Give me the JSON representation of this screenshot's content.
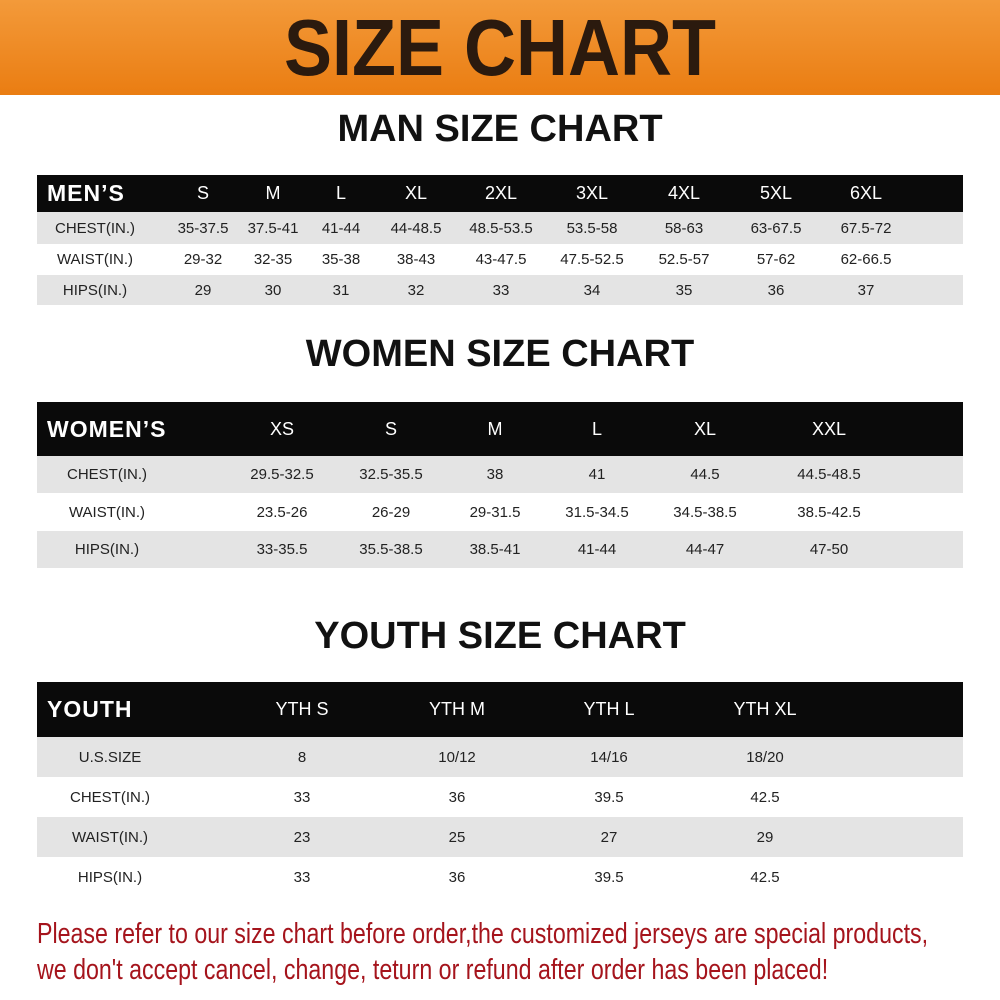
{
  "banner_title": "SIZE CHART",
  "tables": [
    {
      "title": "MAN SIZE CHART",
      "header": [
        "MEN’S",
        "S",
        "M",
        "L",
        "XL",
        "2XL",
        "3XL",
        "4XL",
        "5XL",
        "6XL"
      ],
      "rows": [
        [
          "CHEST(IN.)",
          "35-37.5",
          "37.5-41",
          "41-44",
          "44-48.5",
          "48.5-53.5",
          "53.5-58",
          "58-63",
          "63-67.5",
          "67.5-72"
        ],
        [
          "WAIST(IN.)",
          "29-32",
          "32-35",
          "35-38",
          "38-43",
          "43-47.5",
          "47.5-52.5",
          "52.5-57",
          "57-62",
          "62-66.5"
        ],
        [
          "HIPS(IN.)",
          "29",
          "30",
          "31",
          "32",
          "33",
          "34",
          "35",
          "36",
          "37"
        ]
      ]
    },
    {
      "title": "WOMEN SIZE CHART",
      "header": [
        "WOMEN’S",
        "XS",
        "S",
        "M",
        "L",
        "XL",
        "XXL"
      ],
      "rows": [
        [
          "CHEST(IN.)",
          "29.5-32.5",
          "32.5-35.5",
          "38",
          "41",
          "44.5",
          "44.5-48.5"
        ],
        [
          "WAIST(IN.)",
          "23.5-26",
          "26-29",
          "29-31.5",
          "31.5-34.5",
          "34.5-38.5",
          "38.5-42.5"
        ],
        [
          "HIPS(IN.)",
          "33-35.5",
          "35.5-38.5",
          "38.5-41",
          "41-44",
          "44-47",
          "47-50"
        ]
      ]
    },
    {
      "title": "YOUTH SIZE CHART",
      "header": [
        "YOUTH",
        "YTH S",
        "YTH M",
        "YTH L",
        "YTH XL"
      ],
      "rows": [
        [
          "U.S.SIZE",
          "8",
          "10/12",
          "14/16",
          "18/20"
        ],
        [
          "CHEST(IN.)",
          "33",
          "36",
          "39.5",
          "42.5"
        ],
        [
          "WAIST(IN.)",
          "23",
          "25",
          "27",
          "29"
        ],
        [
          "HIPS(IN.)",
          "33",
          "36",
          "39.5",
          "42.5"
        ]
      ]
    }
  ],
  "notice": [
    "Please refer to our size chart before order,the customized jerseys are special products,",
    "we don't accept cancel, change, teturn or refund after order has been placed!"
  ],
  "colors": {
    "banner": "#ea7d12",
    "header_row": "#0a0a0a",
    "stripe": "#e4e4e4",
    "notice": "#a5141c"
  }
}
